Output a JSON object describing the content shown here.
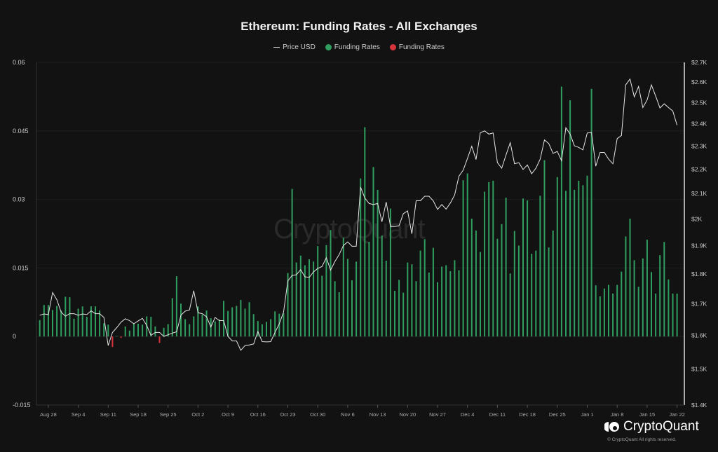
{
  "chart_data": {
    "type": "bar+line",
    "title": "Ethereum: Funding Rates - All Exchanges",
    "legend": {
      "placement": "top-center",
      "entries": [
        "Price USD",
        "Funding Rates",
        "Funding Rates"
      ]
    },
    "colors": {
      "positive": "#2f9e5f",
      "negative": "#d8333a",
      "price": "#e6e6e6",
      "background": "#121212"
    },
    "start_date": "Aug 26",
    "end_date": "Jan 22",
    "x_tick_labels": [
      "Aug 28",
      "Sep 4",
      "Sep 11",
      "Sep 18",
      "Sep 25",
      "Oct 2",
      "Oct 9",
      "Oct 16",
      "Oct 23",
      "Oct 30",
      "Nov 6",
      "Nov 13",
      "Nov 20",
      "Nov 27",
      "Dec 4",
      "Dec 11",
      "Dec 18",
      "Dec 25",
      "Jan 1",
      "Jan 8",
      "Jan 15",
      "Jan 22"
    ],
    "y_left": {
      "ticks": [
        "0.06",
        "0.045",
        "0.03",
        "0.015",
        "0",
        "-0.015"
      ],
      "range": [
        -0.015,
        0.06
      ]
    },
    "y_right": {
      "ticks": [
        "$2.7K",
        "$2.6K",
        "$2.5K",
        "$2.4K",
        "$2.3K",
        "$2.2K",
        "$2.1K",
        "$2K",
        "$1.9K",
        "$1.8K",
        "$1.7K",
        "$1.6K",
        "$1.5K",
        "$1.4K"
      ],
      "range": [
        1400,
        2700
      ],
      "scale": "log"
    },
    "grid": true,
    "funding_rates": [
      0.0036,
      0.0069,
      0.0069,
      0.0058,
      0.0067,
      0.0057,
      0.0087,
      0.0086,
      0.0039,
      0.0061,
      0.0066,
      0.0043,
      0.0066,
      0.0066,
      0.0057,
      0.0029,
      0.0026,
      -0.0023,
      0.0001,
      -0.0003,
      0.0022,
      0.0013,
      0.0028,
      0.0028,
      0.0026,
      0.0044,
      0.0043,
      0.0022,
      -0.0014,
      0.0019,
      0.0027,
      0.0084,
      0.0132,
      0.0072,
      0.0038,
      0.0027,
      0.0044,
      0.0066,
      0.0048,
      0.0057,
      0.004,
      0.0033,
      0.0037,
      0.0078,
      0.0056,
      0.0064,
      0.0067,
      0.008,
      0.0061,
      0.0075,
      0.0049,
      0.0034,
      0.0027,
      0.0032,
      0.0038,
      0.0055,
      0.005,
      0.0051,
      0.0139,
      0.0323,
      0.0162,
      0.0177,
      0.0156,
      0.0169,
      0.0164,
      0.0198,
      0.0133,
      0.02,
      0.0233,
      0.0121,
      0.0097,
      0.0216,
      0.017,
      0.0123,
      0.0164,
      0.0346,
      0.0458,
      0.0207,
      0.0371,
      0.0321,
      0.0221,
      0.0166,
      0.028,
      0.01,
      0.0124,
      0.0096,
      0.0162,
      0.0158,
      0.0121,
      0.0188,
      0.0213,
      0.014,
      0.0194,
      0.0119,
      0.0153,
      0.0156,
      0.0143,
      0.0167,
      0.0145,
      0.0342,
      0.0357,
      0.0258,
      0.0232,
      0.0185,
      0.0317,
      0.0338,
      0.0341,
      0.0214,
      0.0246,
      0.0304,
      0.0138,
      0.0231,
      0.0199,
      0.0302,
      0.0298,
      0.0181,
      0.0188,
      0.0308,
      0.0386,
      0.0195,
      0.0232,
      0.0349,
      0.0547,
      0.0319,
      0.0517,
      0.0321,
      0.0341,
      0.0331,
      0.0352,
      0.0542,
      0.0112,
      0.0088,
      0.0105,
      0.0113,
      0.0094,
      0.0113,
      0.0142,
      0.0219,
      0.0258,
      0.0167,
      0.0109,
      0.0171,
      0.0212,
      0.0141,
      0.0094,
      0.0178,
      0.0207,
      0.0125,
      0.0094,
      0.0094
    ],
    "price_usd": [
      1663,
      1667,
      1665,
      1737,
      1713,
      1673,
      1660,
      1668,
      1668,
      1663,
      1667,
      1665,
      1677,
      1668,
      1668,
      1656,
      1569,
      1609,
      1624,
      1641,
      1652,
      1646,
      1636,
      1645,
      1653,
      1631,
      1600,
      1609,
      1609,
      1597,
      1602,
      1607,
      1611,
      1663,
      1676,
      1680,
      1743,
      1671,
      1668,
      1658,
      1626,
      1656,
      1646,
      1646,
      1597,
      1583,
      1583,
      1555,
      1569,
      1571,
      1574,
      1612,
      1581,
      1580,
      1581,
      1609,
      1636,
      1673,
      1776,
      1795,
      1797,
      1815,
      1790,
      1788,
      1807,
      1819,
      1826,
      1857,
      1813,
      1843,
      1868,
      1901,
      1914,
      1898,
      1898,
      2126,
      2082,
      2060,
      2056,
      2060,
      1989,
      2066,
      1971,
      1971,
      1974,
      2020,
      2031,
      1944,
      2071,
      2071,
      2089,
      2089,
      2071,
      2037,
      2056,
      2038,
      2062,
      2094,
      2171,
      2196,
      2246,
      2299,
      2241,
      2359,
      2368,
      2353,
      2358,
      2228,
      2204,
      2260,
      2315,
      2223,
      2228,
      2199,
      2218,
      2181,
      2204,
      2243,
      2327,
      2311,
      2268,
      2276,
      2236,
      2382,
      2353,
      2301,
      2294,
      2283,
      2358,
      2360,
      2213,
      2272,
      2272,
      2243,
      2223,
      2333,
      2347,
      2586,
      2615,
      2527,
      2578,
      2476,
      2512,
      2586,
      2531,
      2474,
      2494,
      2476,
      2460,
      2394
    ]
  },
  "watermark": "CryptoQuant",
  "logo_text": "CryptoQuant",
  "copyright": "© CryptoQuant All rights reserved."
}
